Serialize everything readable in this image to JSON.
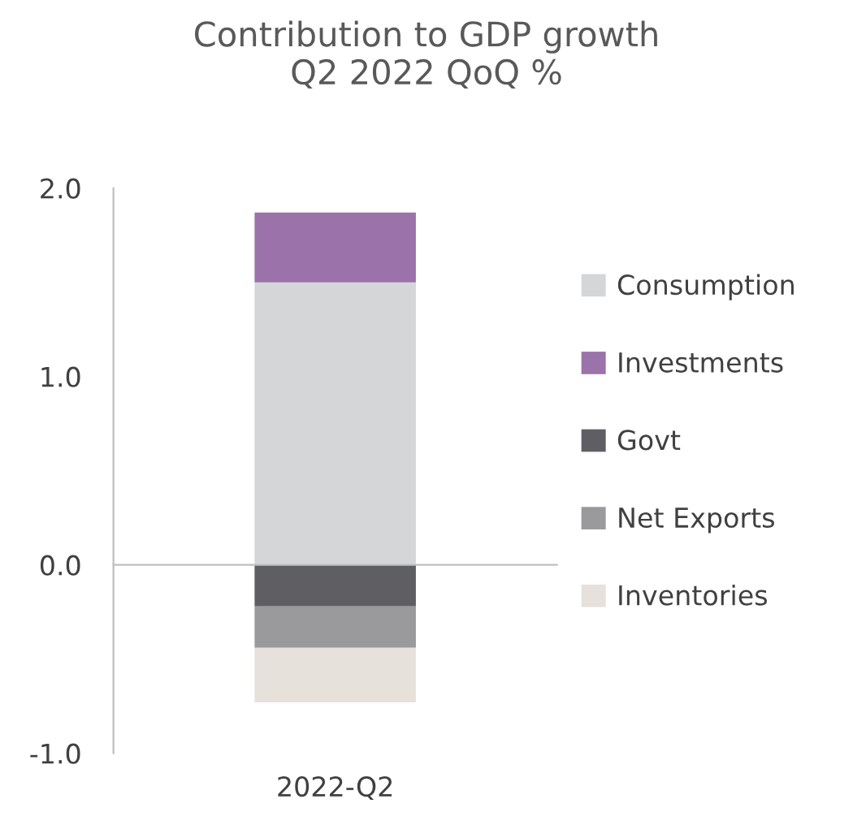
{
  "chart_data": {
    "type": "bar",
    "title": "Contribution to GDP growth\nQ2 2022 QoQ %",
    "stacked": true,
    "categories": [
      "2022-Q2"
    ],
    "series": [
      {
        "name": "Consumption",
        "color": "#d5d6d8",
        "values": [
          1.5
        ]
      },
      {
        "name": "Investments",
        "color": "#9b72aa",
        "values": [
          0.37
        ]
      },
      {
        "name": "Govt",
        "color": "#5f5f63",
        "values": [
          -0.22
        ]
      },
      {
        "name": "Net Exports",
        "color": "#9a9a9c",
        "values": [
          -0.22
        ]
      },
      {
        "name": "Inventories",
        "color": "#e6e1da",
        "values": [
          -0.29
        ]
      }
    ],
    "ylim": [
      -1.0,
      2.0
    ],
    "yticks": [
      {
        "value": -1.0,
        "label": "-1.0"
      },
      {
        "value": 0.0,
        "label": "0.0"
      },
      {
        "value": 1.0,
        "label": "1.0"
      },
      {
        "value": 2.0,
        "label": "2.0"
      }
    ],
    "legend": "right"
  }
}
